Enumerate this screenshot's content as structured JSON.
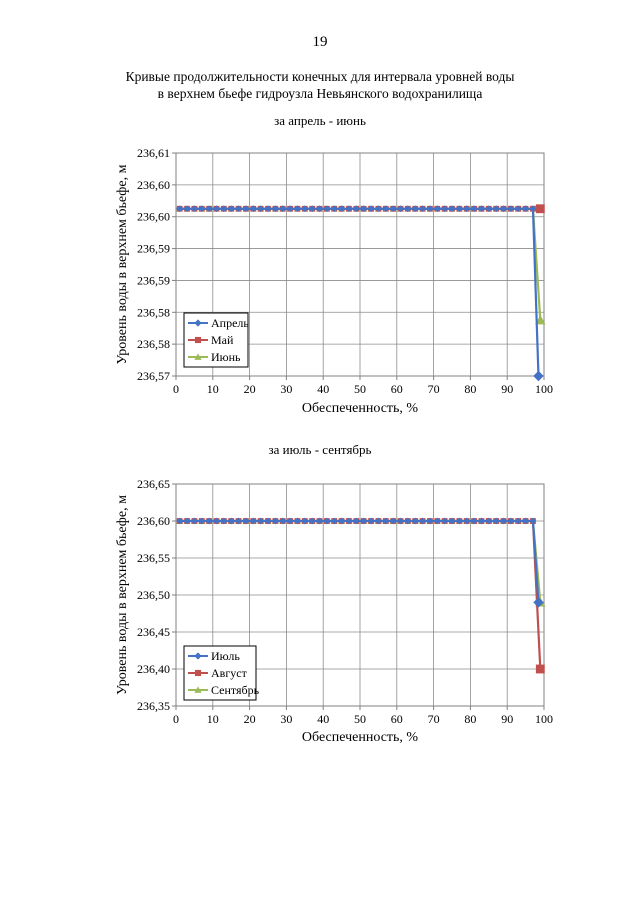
{
  "page": {
    "number": "19",
    "title_line1": "Кривые продолжительности конечных для интервала уровней воды",
    "title_line2": "в верхнем бьефе гидроузла Невьянского водохранилища"
  },
  "chart_data": [
    {
      "type": "line",
      "subtitle": "за апрель - июнь",
      "xlabel": "Обеспеченность, %",
      "ylabel": "Уровень воды в верхнем бьефе, м",
      "xlim": [
        0,
        100
      ],
      "ylim": [
        236.57,
        236.61
      ],
      "xticks": [
        "0",
        "10",
        "20",
        "30",
        "40",
        "50",
        "60",
        "70",
        "80",
        "90",
        "100"
      ],
      "yticks": [
        "236,57",
        "236,58",
        "236,58",
        "236,59",
        "236,59",
        "236,60",
        "236,60",
        "236,61"
      ],
      "grid": true,
      "legend_position": "bottom-left",
      "series": [
        {
          "name": "Апрель",
          "color": "#4472c4",
          "marker": "diamond",
          "x_start": 1,
          "x_end": 97,
          "x_step": 2,
          "y_flat": 236.6,
          "final_points": [
            [
              98.5,
              236.57
            ]
          ]
        },
        {
          "name": "Май",
          "color": "#c0504d",
          "marker": "square",
          "x_start": 1,
          "x_end": 97,
          "x_step": 2,
          "y_flat": 236.6,
          "final_points": [
            [
              99,
              236.6
            ]
          ]
        },
        {
          "name": "Июнь",
          "color": "#9bbb59",
          "marker": "triangle",
          "x_start": 1,
          "x_end": 97,
          "x_step": 2,
          "y_flat": 236.6,
          "final_points": [
            [
              99,
              236.58
            ]
          ]
        }
      ]
    },
    {
      "type": "line",
      "subtitle": "за июль - сентябрь",
      "xlabel": "Обеспеченность, %",
      "ylabel": "Уровень воды в верхнем бьефе, м",
      "xlim": [
        0,
        100
      ],
      "ylim": [
        236.35,
        236.65
      ],
      "xticks": [
        "0",
        "10",
        "20",
        "30",
        "40",
        "50",
        "60",
        "70",
        "80",
        "90",
        "100"
      ],
      "yticks": [
        "236,35",
        "236,40",
        "236,45",
        "236,50",
        "236,55",
        "236,60",
        "236,65"
      ],
      "grid": true,
      "legend_position": "bottom-left",
      "series": [
        {
          "name": "Июль",
          "color": "#4472c4",
          "marker": "diamond",
          "x_start": 1,
          "x_end": 97,
          "x_step": 2,
          "y_flat": 236.6,
          "final_points": [
            [
              98.5,
              236.49
            ]
          ]
        },
        {
          "name": "Август",
          "color": "#c0504d",
          "marker": "square",
          "x_start": 1,
          "x_end": 97,
          "x_step": 2,
          "y_flat": 236.6,
          "final_points": [
            [
              99,
              236.4
            ]
          ]
        },
        {
          "name": "Сентябрь",
          "color": "#9bbb59",
          "marker": "triangle",
          "x_start": 1,
          "x_end": 97,
          "x_step": 2,
          "y_flat": 236.6,
          "final_points": [
            [
              99,
              236.49
            ]
          ]
        }
      ]
    }
  ]
}
